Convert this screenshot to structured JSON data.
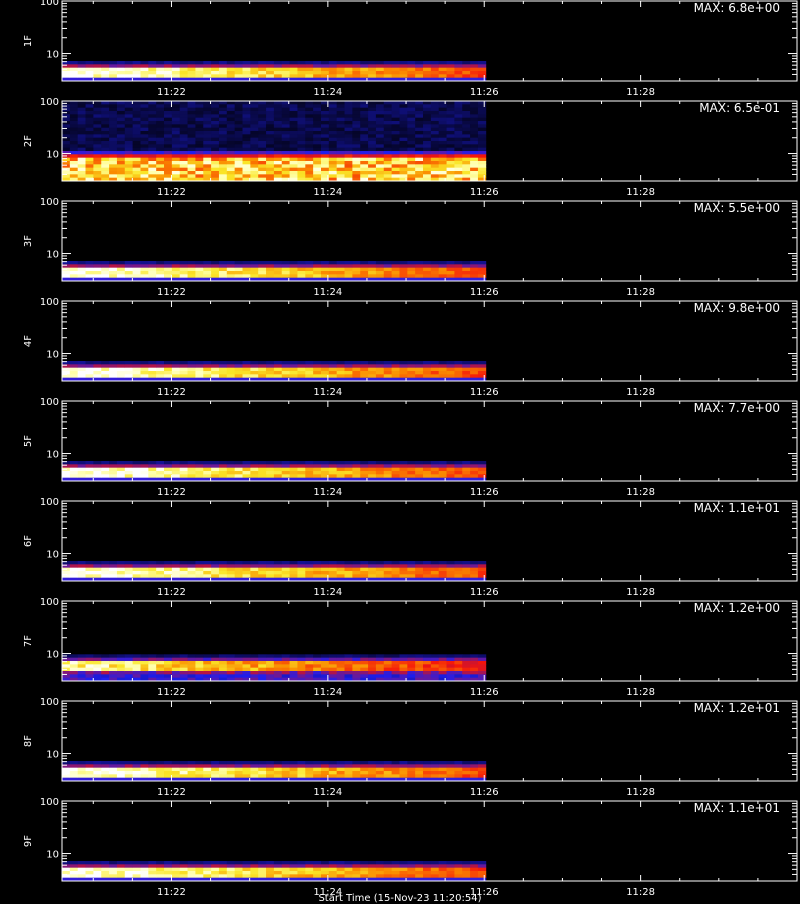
{
  "chart_data": {
    "type": "heatmap",
    "panels": [
      {
        "label": "1F",
        "max_label": "MAX: 6.8e+00",
        "profile": "normal"
      },
      {
        "label": "2F",
        "max_label": "MAX: 6.5e-01",
        "profile": "wide"
      },
      {
        "label": "3F",
        "max_label": "MAX: 5.5e+00",
        "profile": "normal"
      },
      {
        "label": "4F",
        "max_label": "MAX: 9.8e+00",
        "profile": "normal"
      },
      {
        "label": "5F",
        "max_label": "MAX: 7.7e+00",
        "profile": "normal"
      },
      {
        "label": "6F",
        "max_label": "MAX: 1.1e+01",
        "profile": "normal"
      },
      {
        "label": "7F",
        "max_label": "MAX: 1.2e+00",
        "profile": "split"
      },
      {
        "label": "8F",
        "max_label": "MAX: 1.2e+01",
        "profile": "normal"
      },
      {
        "label": "9F",
        "max_label": "MAX: 1.1e+01",
        "profile": "normal"
      }
    ],
    "x_ticks": [
      {
        "t": 22,
        "label": "11:22"
      },
      {
        "t": 24,
        "label": "11:24"
      },
      {
        "t": 26,
        "label": "11:26"
      },
      {
        "t": 28,
        "label": "11:28"
      }
    ],
    "x_range_minutes": [
      20.6,
      30.0
    ],
    "data_end_minutes": 26.02,
    "y_ticks": [
      {
        "v": 10,
        "label": "10"
      },
      {
        "v": 100,
        "label": "100"
      }
    ],
    "y_scale": "log",
    "y_range": [
      3,
      100
    ],
    "xlabel": "Start Time (15-Nov-23 11:20:54)"
  }
}
